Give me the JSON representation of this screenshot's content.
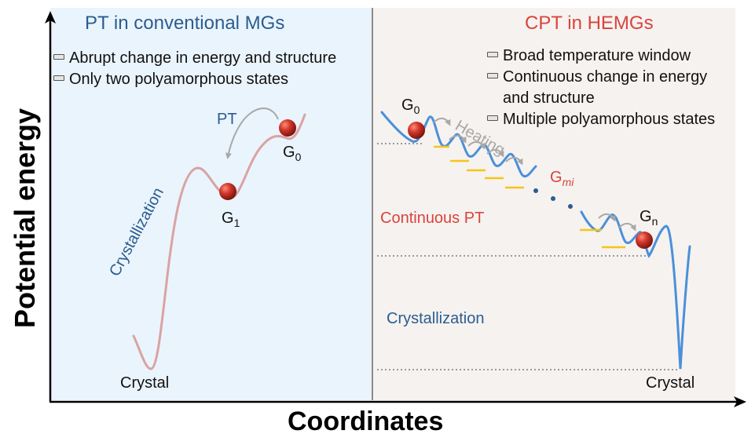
{
  "axes": {
    "x_label": "Coordinates",
    "y_label": "Potential energy"
  },
  "left_panel": {
    "title": "PT in conventional MGs",
    "bullets": [
      "Abrupt change in energy and structure",
      "Only two polyamorphous states"
    ],
    "pt_label": "PT",
    "crystallization_label": "Crystallization",
    "state_g0": {
      "base": "G",
      "sub": "0"
    },
    "state_g1": {
      "base": "G",
      "sub": "1"
    },
    "crystal_label": "Crystal",
    "curve_color": "#d9a3a3",
    "background": "#eaf4fd"
  },
  "right_panel": {
    "title": "CPT in HEMGs",
    "bullets": [
      "Broad temperature window",
      "Continuous change in energy",
      "and structure",
      "Multiple polyamorphous states"
    ],
    "heating_label": "Heating",
    "continuous_pt_label": "Continuous PT",
    "crystallization_label": "Crystallization",
    "state_g0": {
      "base": "G",
      "sub": "0"
    },
    "state_gmi": {
      "base": "G",
      "sub": "mi"
    },
    "state_gn": {
      "base": "G",
      "sub": "n"
    },
    "crystal_label": "Crystal",
    "curve_color": "#4a90d9",
    "level_color": "#f5c518",
    "background": "#f6f2f0"
  },
  "colors": {
    "ball": "#c0241c",
    "title_blue": "#2a5d8f",
    "title_red": "#d9443c",
    "arrow_gray": "#a8a8a8"
  }
}
